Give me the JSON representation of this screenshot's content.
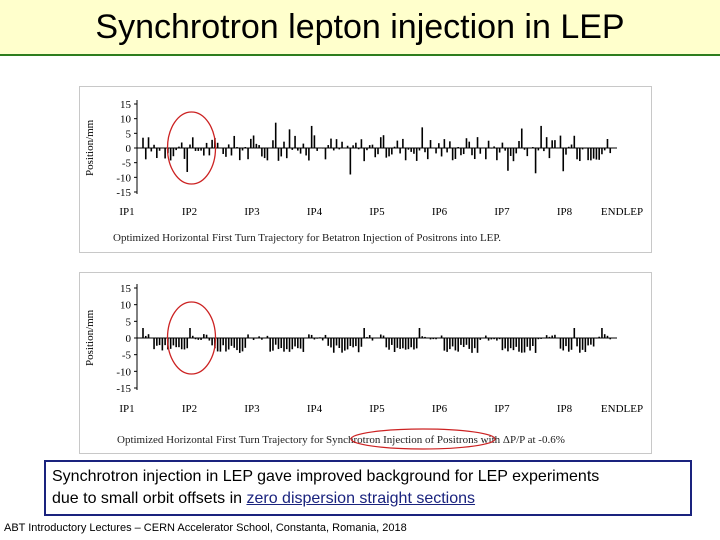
{
  "title": "Synchrotron lepton injection in LEP",
  "chart_data": [
    {
      "type": "line",
      "title": "Optimized Horizontal First Turn Trajectory for Betatron Injection of Positrons into LEP.",
      "ylabel": "Position/mm",
      "xlabel": "",
      "ylim": [
        -15,
        15
      ],
      "yticks": [
        15,
        10,
        5,
        0,
        -5,
        -10,
        -15
      ],
      "xticks": [
        "IP1",
        "IP2",
        "IP3",
        "IP4",
        "IP5",
        "IP6",
        "IP7",
        "IP8",
        "ENDLEP"
      ],
      "description_values": "orbit offsets oscillate roughly between -5 and +5 mm along the ring with spikes up to about +/-12 mm",
      "highlight": "IP2"
    },
    {
      "type": "line",
      "title": "Optimized Horizontal First Turn Trajectory for Synchrotron Injection of Positrons with ΔP/P at -0.6%",
      "ylabel": "Position/mm",
      "xlabel": "",
      "ylim": [
        -15,
        15
      ],
      "yticks": [
        15,
        10,
        5,
        0,
        -5,
        -10,
        -15
      ],
      "xticks": [
        "IP1",
        "IP2",
        "IP3",
        "IP4",
        "IP5",
        "IP6",
        "IP7",
        "IP8",
        "ENDLEP"
      ],
      "description_values": "orbit stays near 0 mm in straight sections, dipping to about -4 mm in the arcs",
      "highlight": "IP2"
    }
  ],
  "captions": {
    "top": "Optimized Horizontal First Turn Trajectory for Betatron Injection of Positrons into LEP.",
    "bottom_pre": "Optimized Horizontal First Turn Trajectory ",
    "bottom_highlight": "for Synchrotron Injection",
    "bottom_post": " of Positrons with ΔP/P at -0.6%"
  },
  "note": {
    "line1": "Synchrotron injection in LEP gave improved background for LEP experiments",
    "line2_pre": "due to small orbit offsets in ",
    "line2_link": "zero dispersion straight sections"
  },
  "footer": "ABT Introductory Lectures – CERN Accelerator School, Constanta, Romania, 2018",
  "colors": {
    "highlight_ellipse": "#cc2222",
    "note_border": "#1a237e",
    "title_band": "#ffffcc",
    "title_line": "#2e7d1e"
  }
}
